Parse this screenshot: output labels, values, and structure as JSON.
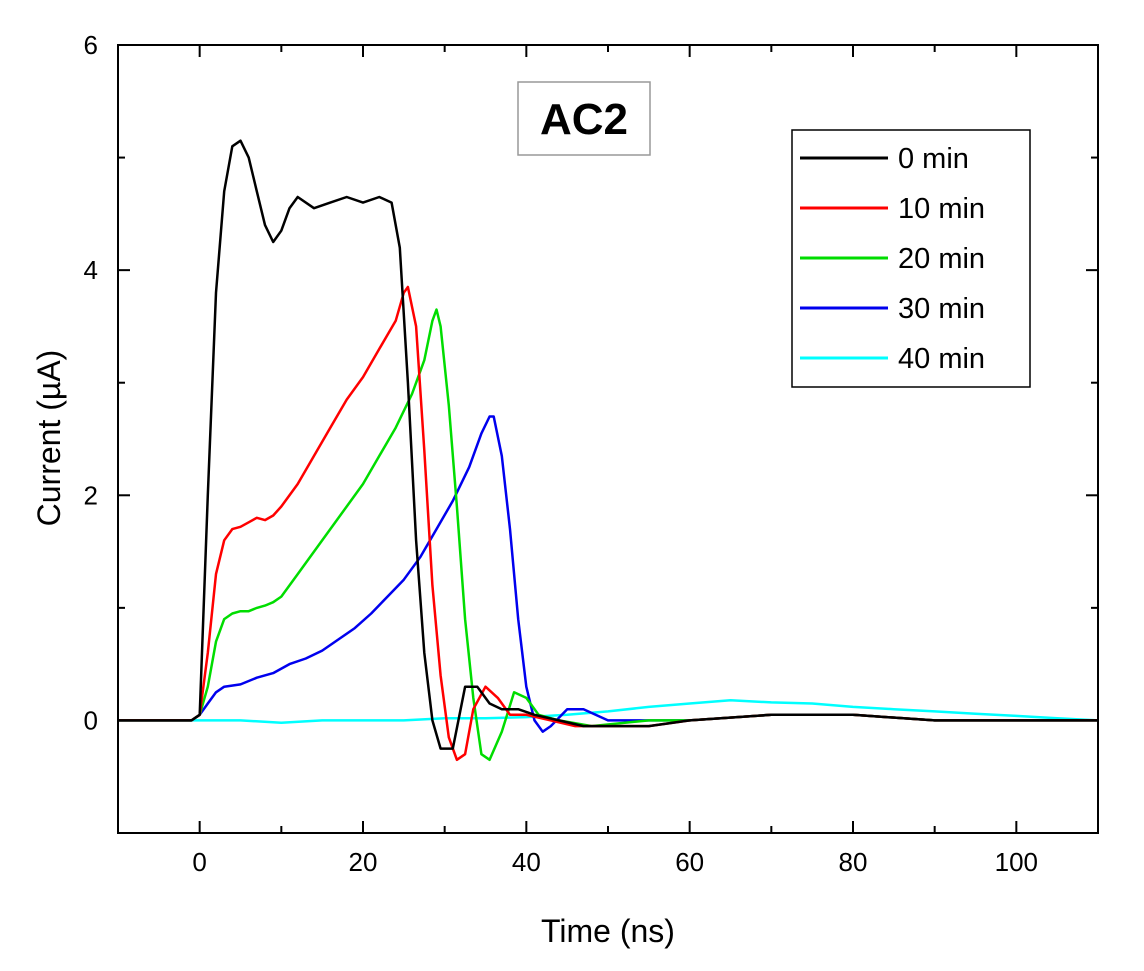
{
  "chart_data": {
    "type": "line",
    "title": "AC2",
    "xlabel": "Time (ns)",
    "ylabel": "Current (µA)",
    "xlim": [
      -10,
      110
    ],
    "ylim": [
      -1,
      6
    ],
    "xticks": [
      0,
      20,
      40,
      60,
      80,
      100
    ],
    "yticks": [
      0,
      2,
      4,
      6
    ],
    "x_minor_step": 10,
    "y_minor_step": 1,
    "grid": false,
    "legend_position": "top-right",
    "series": [
      {
        "name": "0 min",
        "color": "#000000",
        "x": [
          -10,
          -5,
          -1,
          0,
          1,
          2,
          3,
          4,
          5,
          6,
          7,
          8,
          9,
          10,
          11,
          12,
          14,
          16,
          18,
          20,
          22,
          23.5,
          24.5,
          25.5,
          26.5,
          27.5,
          28.5,
          29.5,
          31,
          32.5,
          34,
          35.5,
          37,
          39,
          41,
          44,
          47,
          50,
          55,
          60,
          70,
          80,
          90,
          100,
          110
        ],
        "y": [
          0,
          0,
          0,
          0.05,
          2.0,
          3.8,
          4.7,
          5.1,
          5.15,
          5.0,
          4.7,
          4.4,
          4.25,
          4.35,
          4.55,
          4.65,
          4.55,
          4.6,
          4.65,
          4.6,
          4.65,
          4.6,
          4.2,
          3.0,
          1.6,
          0.6,
          0.0,
          -0.25,
          -0.25,
          0.3,
          0.3,
          0.15,
          0.1,
          0.1,
          0.05,
          0.0,
          -0.05,
          -0.05,
          -0.05,
          0.0,
          0.05,
          0.05,
          0.0,
          0.0,
          0.0
        ]
      },
      {
        "name": "10 min",
        "color": "#ff0000",
        "x": [
          -10,
          -5,
          -1,
          0,
          1,
          2,
          3,
          4,
          5,
          6,
          7,
          8,
          9,
          10,
          12,
          14,
          16,
          18,
          20,
          22,
          24,
          25,
          25.5,
          26.5,
          27.5,
          28.5,
          29.5,
          30.5,
          31.5,
          32.5,
          33.5,
          35,
          36.5,
          38,
          40,
          43,
          46,
          50,
          55,
          60,
          70,
          80,
          90,
          100,
          110
        ],
        "y": [
          0,
          0,
          0,
          0.05,
          0.6,
          1.3,
          1.6,
          1.7,
          1.72,
          1.76,
          1.8,
          1.78,
          1.82,
          1.9,
          2.1,
          2.35,
          2.6,
          2.85,
          3.05,
          3.3,
          3.55,
          3.8,
          3.85,
          3.5,
          2.4,
          1.2,
          0.4,
          -0.15,
          -0.35,
          -0.3,
          0.1,
          0.3,
          0.2,
          0.05,
          0.05,
          0.0,
          -0.05,
          -0.05,
          -0.05,
          0.0,
          0.05,
          0.05,
          0.0,
          0.0,
          0.0
        ]
      },
      {
        "name": "20 min",
        "color": "#00dd00",
        "x": [
          -10,
          -5,
          -1,
          0,
          1,
          2,
          3,
          4,
          5,
          6,
          7,
          8,
          9,
          10,
          12,
          14,
          16,
          18,
          20,
          22,
          24,
          26,
          27.5,
          28.5,
          29,
          29.5,
          30.5,
          31.5,
          32.5,
          33.5,
          34.5,
          35.5,
          37,
          38.5,
          40,
          41.5,
          44,
          48,
          55,
          60,
          70,
          80,
          90,
          100,
          110
        ],
        "y": [
          0,
          0,
          0,
          0.05,
          0.3,
          0.7,
          0.9,
          0.95,
          0.97,
          0.97,
          1.0,
          1.02,
          1.05,
          1.1,
          1.3,
          1.5,
          1.7,
          1.9,
          2.1,
          2.35,
          2.6,
          2.9,
          3.2,
          3.55,
          3.65,
          3.5,
          2.8,
          1.9,
          0.9,
          0.2,
          -0.3,
          -0.35,
          -0.1,
          0.25,
          0.2,
          0.05,
          0.0,
          -0.05,
          0.0,
          0.0,
          0.05,
          0.05,
          0.0,
          0.0,
          0.0
        ]
      },
      {
        "name": "30 min",
        "color": "#0000ee",
        "x": [
          -10,
          -5,
          -1,
          0,
          1,
          2,
          3,
          5,
          7,
          9,
          11,
          13,
          15,
          17,
          19,
          21,
          23,
          25,
          27,
          29,
          31,
          33,
          34.5,
          35.5,
          36,
          37,
          38,
          39,
          40,
          41,
          42,
          43,
          45,
          47,
          50,
          55,
          60,
          70,
          80,
          90,
          100,
          110
        ],
        "y": [
          0,
          0,
          0,
          0.05,
          0.15,
          0.25,
          0.3,
          0.32,
          0.38,
          0.42,
          0.5,
          0.55,
          0.62,
          0.72,
          0.82,
          0.95,
          1.1,
          1.25,
          1.45,
          1.7,
          1.95,
          2.25,
          2.55,
          2.7,
          2.7,
          2.35,
          1.7,
          0.9,
          0.3,
          0.0,
          -0.1,
          -0.05,
          0.1,
          0.1,
          0.0,
          0.0,
          0.0,
          0.05,
          0.05,
          0.0,
          0.0,
          0.0
        ]
      },
      {
        "name": "40 min",
        "color": "#00ffff",
        "x": [
          -10,
          -5,
          0,
          5,
          10,
          15,
          20,
          25,
          30,
          35,
          40,
          45,
          50,
          55,
          60,
          65,
          70,
          75,
          80,
          85,
          90,
          95,
          100,
          105,
          110
        ],
        "y": [
          0,
          0,
          0,
          0.0,
          -0.02,
          0.0,
          0.0,
          0.0,
          0.02,
          0.02,
          0.03,
          0.05,
          0.08,
          0.12,
          0.15,
          0.18,
          0.16,
          0.15,
          0.12,
          0.1,
          0.08,
          0.06,
          0.04,
          0.02,
          0.0
        ]
      }
    ]
  }
}
